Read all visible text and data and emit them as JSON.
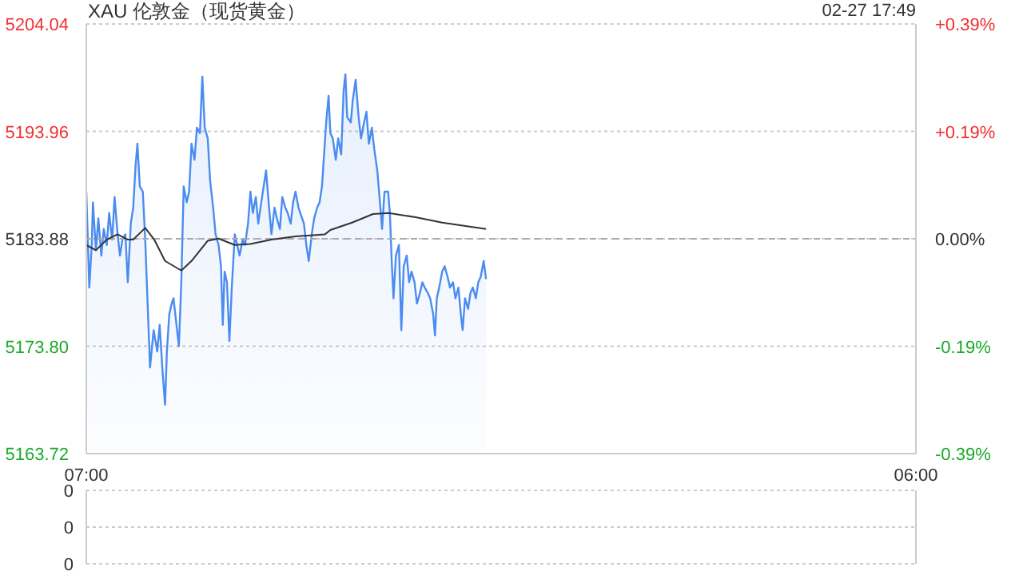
{
  "chart_data": [
    {
      "type": "area",
      "title": "XAU 伦敦金（现货黄金）",
      "annotations": [
        "02-27 17:49"
      ],
      "xlim": [
        "--02-27T07:00",
        "--02-28T06:00"
      ],
      "xticks": [
        {
          "value": "--02-27T07:00",
          "label": "07:00"
        },
        {
          "value": "--02-28T06:00",
          "label": "06:00"
        }
      ],
      "ylim": [
        5163.72,
        5204.04
      ],
      "yticks": [
        5163.72,
        {
          "value": 5173.8,
          "label": "5173.80"
        },
        5183.88,
        5193.96,
        5204.04
      ],
      "y2lim": [
        -0.39,
        0.39
      ],
      "y2ticks": [
        {
          "value": -0.39,
          "label": "-0.39%"
        },
        {
          "value": -0.195,
          "label": "-0.19%"
        },
        {
          "value": 0,
          "label": "0.00%"
        },
        {
          "value": 0.195,
          "label": "+0.19%"
        },
        {
          "value": 0.39,
          "label": "+0.39%"
        }
      ],
      "grid": "y",
      "ref_lines": [
        {
          "axis": "y",
          "value": 5183.88,
          "color": "#aaaaaa",
          "line_style": "dashed"
        }
      ],
      "series": [
        {
          "type": "area",
          "color": "#4a8cf0",
          "x": [
            "--02-27T07:00",
            "--02-27T07:05",
            "--02-27T07:09",
            "--02-27T07:11",
            "--02-27T07:16",
            "--02-27T07:20",
            "--02-27T07:25",
            "--02-27T07:29",
            "--02-27T07:34",
            "--02-27T07:38",
            "--02-27T07:43",
            "--02-27T07:47",
            "--02-27T07:52",
            "--02-27T07:56",
            "--02-27T08:00",
            "--02-27T08:05",
            "--02-27T08:09",
            "--02-27T08:14",
            "--02-27T08:18",
            "--02-27T08:22",
            "--02-27T08:25",
            "--02-27T08:29",
            "--02-27T08:34",
            "--02-27T08:38",
            "--02-27T08:43",
            "--02-27T08:46",
            "--02-27T08:52",
            "--02-27T08:58",
            "--02-27T09:02",
            "--02-27T09:07",
            "--02-27T09:11",
            "--02-27T09:14",
            "--02-27T09:18",
            "--02-27T09:22",
            "--02-27T09:25",
            "--02-27T09:29",
            "--02-27T09:34",
            "--02-27T09:38",
            "--02-27T09:42",
            "--02-27T09:47",
            "--02-27T09:51",
            "--02-27T09:55",
            "--02-27T10:00",
            "--02-27T10:04",
            "--02-27T10:09",
            "--02-27T10:13",
            "--02-27T10:17",
            "--02-27T10:22",
            "--02-27T10:26",
            "--02-27T10:31",
            "--02-27T10:35",
            "--02-27T10:40",
            "--02-27T10:44",
            "--02-27T10:47",
            "--02-27T10:50",
            "--02-27T10:54",
            "--02-27T10:58",
            "--02-27T11:02",
            "--02-27T11:07",
            "--02-27T11:11",
            "--02-27T11:15",
            "--02-27T11:20",
            "--02-27T11:24",
            "--02-27T11:29",
            "--02-27T11:33",
            "--02-27T11:37",
            "--02-27T11:42",
            "--02-27T11:46",
            "--02-27T11:51",
            "--02-27T11:55",
            "--02-27T11:59",
            "--02-27T12:04",
            "--02-27T12:08",
            "--02-27T12:13",
            "--02-27T12:17",
            "--02-27T12:22",
            "--02-27T12:26",
            "--02-27T12:31",
            "--02-27T12:35",
            "--02-27T12:40",
            "--02-27T12:44",
            "--02-27T12:48",
            "--02-27T12:53",
            "--02-27T13:02",
            "--02-27T13:06",
            "--02-27T13:10",
            "--02-27T13:15",
            "--02-27T13:19",
            "--02-27T13:24",
            "--02-27T13:28",
            "--02-27T13:32",
            "--02-27T13:39",
            "--02-27T13:43",
            "--02-27T13:46",
            "--02-27T13:50",
            "--02-27T13:55",
            "--02-27T13:59",
            "--02-27T14:04",
            "--02-27T14:08",
            "--02-27T14:11",
            "--02-27T14:14",
            "--02-27T14:20",
            "--02-27T14:23",
            "--02-27T14:28",
            "--02-27T14:33",
            "--02-27T14:37",
            "--02-27T14:42",
            "--02-27T14:46",
            "--02-27T14:50",
            "--02-27T14:55",
            "--02-27T14:59",
            "--02-27T15:04",
            "--02-27T15:07",
            "--02-27T15:12",
            "--02-27T15:16",
            "--02-27T15:22",
            "--02-27T15:25",
            "--02-27T15:28",
            "--02-27T15:31",
            "--02-27T15:35",
            "--02-27T15:40",
            "--02-27T15:44",
            "--02-27T15:48",
            "--02-27T15:53",
            "--02-27T15:57",
            "--02-27T16:01",
            "--02-27T16:06",
            "--02-27T16:10",
            "--02-27T16:15",
            "--02-27T16:19",
            "--02-27T16:23",
            "--02-27T16:28",
            "--02-27T16:32",
            "--02-27T16:37",
            "--02-27T16:40",
            "--02-27T16:43",
            "--02-27T16:47",
            "--02-27T16:52",
            "--02-27T16:56",
            "--02-27T17:01",
            "--02-27T17:05",
            "--02-27T17:10",
            "--02-27T17:14",
            "--02-27T17:19",
            "--02-27T17:23",
            "--02-27T17:26",
            "--02-27T17:30",
            "--02-27T17:35",
            "--02-27T17:39",
            "--02-27T17:43",
            "--02-27T17:48",
            "--02-27T17:52",
            "--02-27T17:56",
            "--02-27T18:01",
            "--02-27T18:05"
          ],
          "values": [
            5188.3,
            5179.3,
            5183.3,
            5187.3,
            5182.8,
            5185.8,
            5182.3,
            5184.8,
            5183.3,
            5186.3,
            5183.8,
            5187.8,
            5184.3,
            5182.3,
            5183.8,
            5184.3,
            5179.8,
            5185.3,
            5186.8,
            5190.8,
            5192.8,
            5188.8,
            5188.3,
            5183.8,
            5176.3,
            5171.8,
            5175.3,
            5173.3,
            5175.8,
            5171.3,
            5168.3,
            5173.3,
            5176.8,
            5177.8,
            5178.3,
            5176.3,
            5173.8,
            5179.8,
            5188.8,
            5187.3,
            5188.3,
            5192.8,
            5191.3,
            5194.3,
            5193.8,
            5199.1,
            5194.3,
            5193.3,
            5189.3,
            5186.8,
            5184.3,
            5183.3,
            5181.3,
            5175.8,
            5180.8,
            5179.8,
            5174.3,
            5179.3,
            5184.3,
            5183.3,
            5182.3,
            5183.8,
            5183.3,
            5185.3,
            5188.3,
            5186.3,
            5187.8,
            5185.3,
            5187.3,
            5188.8,
            5190.3,
            5186.8,
            5184.3,
            5186.8,
            5185.8,
            5184.8,
            5187.8,
            5186.8,
            5186.3,
            5185.3,
            5187.3,
            5188.3,
            5186.8,
            5185.3,
            5183.3,
            5181.8,
            5184.3,
            5185.8,
            5186.8,
            5187.3,
            5188.8,
            5194.8,
            5197.3,
            5193.8,
            5193.3,
            5191.3,
            5193.3,
            5191.8,
            5197.8,
            5199.3,
            5195.3,
            5194.8,
            5196.8,
            5198.8,
            5195.3,
            5193.3,
            5194.8,
            5195.8,
            5192.8,
            5194.3,
            5192.3,
            5190.3,
            5188.3,
            5184.8,
            5188.3,
            5188.3,
            5186.3,
            5181.8,
            5178.3,
            5182.3,
            5183.3,
            5175.3,
            5181.3,
            5182.3,
            5179.8,
            5180.8,
            5179.8,
            5177.8,
            5178.8,
            5179.8,
            5179.3,
            5178.8,
            5178.3,
            5176.8,
            5174.8,
            5178.3,
            5179.3,
            5180.8,
            5181.3,
            5180.3,
            5179.3,
            5179.8,
            5178.3,
            5179.3,
            5176.8,
            5175.3,
            5178.3,
            5177.3,
            5178.8,
            5179.3,
            5178.3,
            5179.8,
            5180.3,
            5181.8,
            5180.1
          ]
        },
        {
          "type": "line",
          "color": "#333333",
          "x": [
            "--02-27T07:00",
            "--02-27T07:16",
            "--02-27T07:34",
            "--02-27T07:52",
            "--02-27T08:09",
            "--02-27T08:18",
            "--02-27T08:38",
            "--02-27T08:53",
            "--02-27T09:11",
            "--02-27T09:38",
            "--02-27T09:55",
            "--02-27T10:22",
            "--02-27T10:40",
            "--02-27T11:07",
            "--02-27T11:33",
            "--02-27T12:08",
            "--02-27T12:48",
            "--02-27T13:37",
            "--02-27T13:46",
            "--02-27T14:22",
            "--02-27T14:57",
            "--02-27T15:23",
            "--02-27T16:08",
            "--02-27T16:52",
            "--02-27T18:05"
          ],
          "values": [
            5183.3,
            5182.8,
            5183.8,
            5184.3,
            5183.8,
            5183.8,
            5184.9,
            5183.8,
            5181.8,
            5180.9,
            5181.8,
            5183.7,
            5183.9,
            5183.3,
            5183.4,
            5183.8,
            5184.1,
            5184.3,
            5184.7,
            5185.4,
            5186.2,
            5186.3,
            5185.9,
            5185.4,
            5184.8
          ]
        }
      ]
    },
    {
      "type": "other",
      "annotations": [
        "0",
        "0",
        "0"
      ]
    }
  ]
}
